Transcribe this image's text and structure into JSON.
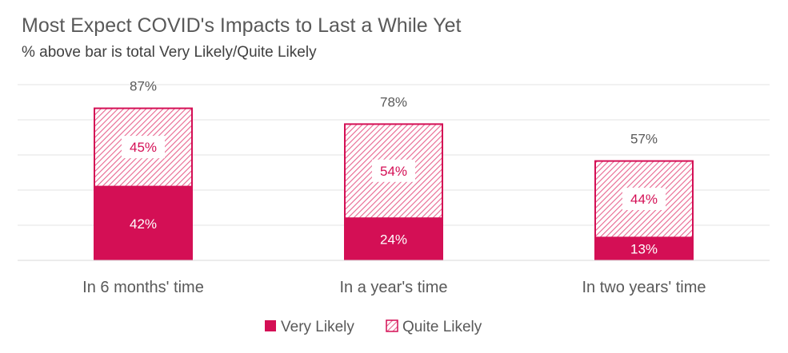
{
  "chart_data": {
    "type": "bar",
    "stacked": true,
    "title": "Most Expect COVID's Impacts to Last a While Yet",
    "subtitle": "% above bar is total Very Likely/Quite Likely",
    "categories": [
      "In 6 months' time",
      "In a year's time",
      "In two years' time"
    ],
    "series": [
      {
        "name": "Very Likely",
        "values": [
          42,
          24,
          13
        ],
        "labels": [
          "42%",
          "24%",
          "13%"
        ],
        "color": "#d40f55",
        "fill": "solid"
      },
      {
        "name": "Quite Likely",
        "values": [
          45,
          54,
          44
        ],
        "labels": [
          "45%",
          "54%",
          "44%"
        ],
        "color": "#d40f55",
        "fill": "hatched"
      }
    ],
    "totals": [
      87,
      78,
      57
    ],
    "total_labels": [
      "87%",
      "78%",
      "57%"
    ],
    "ylim": [
      0,
      100
    ],
    "grid": true,
    "legend_position": "bottom"
  }
}
